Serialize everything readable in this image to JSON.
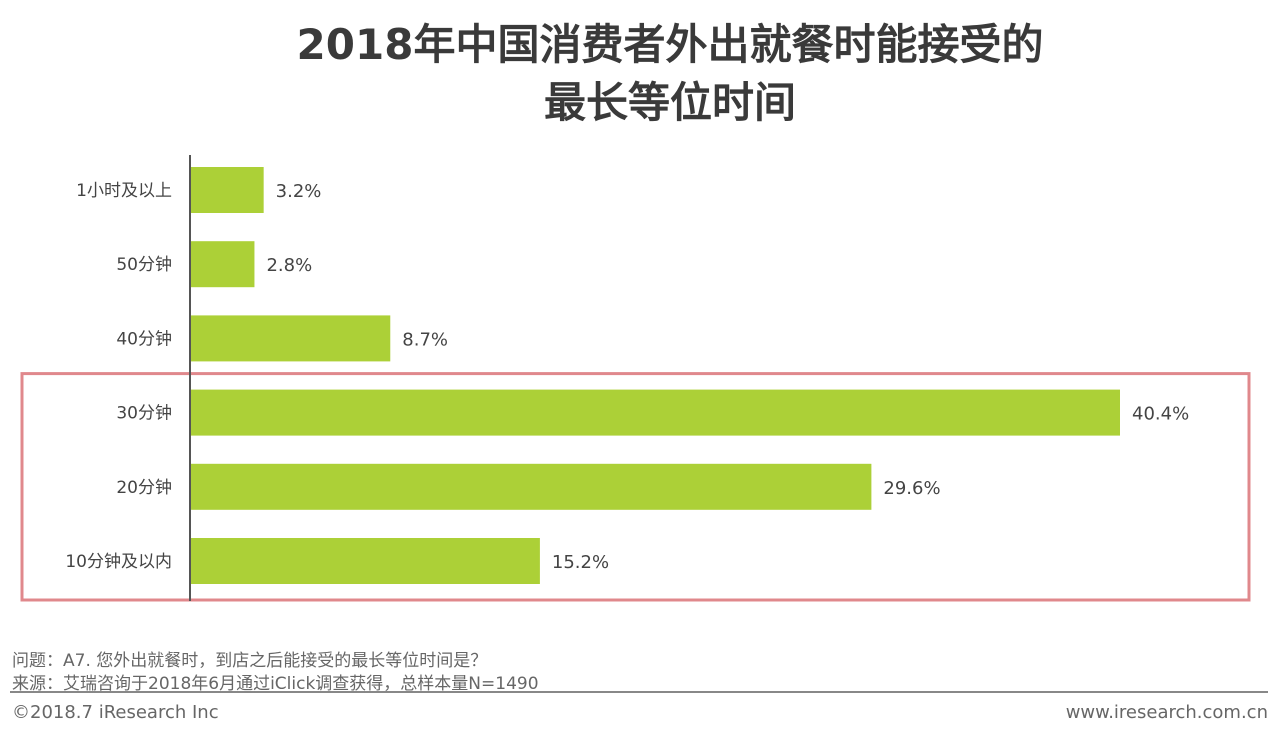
{
  "chart_data": {
    "type": "bar",
    "orientation": "horizontal",
    "title": [
      "2018年中国消费者外出就餐时能接受的",
      "最长等位时间"
    ],
    "categories": [
      "1小时及以上",
      "50分钟",
      "40分钟",
      "30分钟",
      "20分钟",
      "10分钟及以内"
    ],
    "values": [
      3.2,
      2.8,
      8.7,
      40.4,
      29.6,
      15.2
    ],
    "value_labels": [
      "3.2%",
      "2.8%",
      "8.7%",
      "40.4%",
      "29.6%",
      "15.2%"
    ],
    "bar_color": "#acd037",
    "highlight_color": "#e0888c",
    "highlighted_categories": [
      "30分钟",
      "20分钟",
      "10分钟及以内"
    ],
    "grid": false
  },
  "footer": {
    "question": "问题：A7. 您外出就餐时，到店之后能接受的最长等位时间是？",
    "source": "来源：艾瑞咨询于2018年6月通过iClick调查获得，总样本量N=1490",
    "copyright": "©2018.7 iResearch Inc",
    "website": "www.iresearch.com.cn"
  }
}
